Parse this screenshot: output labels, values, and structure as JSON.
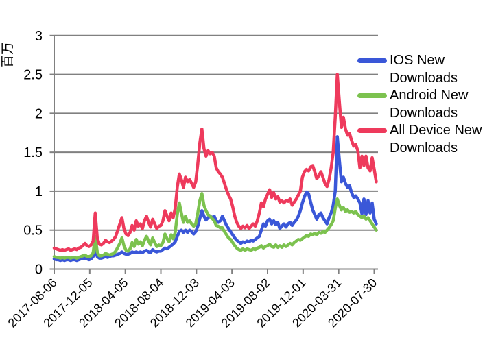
{
  "chart_data": {
    "type": "line",
    "title": "",
    "ylabel": "百万",
    "xlabel": "",
    "ylim": [
      0,
      3
    ],
    "grid": true,
    "legend_position": "right",
    "axis_color": "#808080",
    "text_color": "#000000",
    "yticks": [
      0,
      0.5,
      1,
      1.5,
      2,
      2.5,
      3
    ],
    "ytick_labels": [
      "0",
      "0.5",
      "1",
      "1.5",
      "2",
      "2.5",
      "3"
    ],
    "xtick_labels": [
      "2017-08-06",
      "2017-12-05",
      "2018-04-05",
      "2018-08-04",
      "2018-12-03",
      "2019-04-03",
      "2019-08-02",
      "2019-12-01",
      "2020-03-31",
      "2020-07-30"
    ],
    "x_unit": "weekly samples between tick dates",
    "series": [
      {
        "key": "ios-new-downloads",
        "name": "IOS New Downloads",
        "color": "#3A57D8",
        "values": [
          0.13,
          0.12,
          0.12,
          0.11,
          0.12,
          0.11,
          0.12,
          0.12,
          0.11,
          0.12,
          0.12,
          0.11,
          0.12,
          0.13,
          0.13,
          0.14,
          0.13,
          0.12,
          0.13,
          0.16,
          0.24,
          0.16,
          0.14,
          0.14,
          0.15,
          0.16,
          0.15,
          0.16,
          0.17,
          0.17,
          0.18,
          0.19,
          0.2,
          0.22,
          0.2,
          0.19,
          0.19,
          0.2,
          0.22,
          0.21,
          0.22,
          0.21,
          0.22,
          0.21,
          0.23,
          0.24,
          0.22,
          0.21,
          0.25,
          0.23,
          0.22,
          0.23,
          0.23,
          0.25,
          0.27,
          0.26,
          0.28,
          0.3,
          0.32,
          0.35,
          0.42,
          0.48,
          0.5,
          0.47,
          0.5,
          0.47,
          0.5,
          0.48,
          0.45,
          0.48,
          0.55,
          0.65,
          0.75,
          0.68,
          0.63,
          0.66,
          0.68,
          0.66,
          0.68,
          0.62,
          0.6,
          0.62,
          0.68,
          0.62,
          0.56,
          0.52,
          0.48,
          0.44,
          0.4,
          0.37,
          0.35,
          0.33,
          0.35,
          0.34,
          0.36,
          0.35,
          0.37,
          0.36,
          0.38,
          0.4,
          0.42,
          0.5,
          0.58,
          0.55,
          0.62,
          0.64,
          0.58,
          0.62,
          0.57,
          0.6,
          0.52,
          0.55,
          0.58,
          0.54,
          0.58,
          0.6,
          0.56,
          0.6,
          0.63,
          0.68,
          0.75,
          0.85,
          0.93,
          0.99,
          0.97,
          0.86,
          0.76,
          0.7,
          0.64,
          0.7,
          0.72,
          0.66,
          0.62,
          0.58,
          0.66,
          0.72,
          0.82,
          1.0,
          1.7,
          1.4,
          1.12,
          1.18,
          1.1,
          1.05,
          1.07,
          0.98,
          0.92,
          0.94,
          0.9,
          0.85,
          0.71,
          0.9,
          0.7,
          0.88,
          0.72,
          0.85,
          0.64,
          0.58
        ]
      },
      {
        "key": "android-new-downloads",
        "name": "Android New Downloads",
        "color": "#7CC24F",
        "values": [
          0.16,
          0.15,
          0.15,
          0.14,
          0.15,
          0.14,
          0.15,
          0.15,
          0.14,
          0.15,
          0.15,
          0.14,
          0.15,
          0.16,
          0.17,
          0.18,
          0.16,
          0.16,
          0.17,
          0.21,
          0.42,
          0.22,
          0.17,
          0.17,
          0.18,
          0.2,
          0.19,
          0.18,
          0.19,
          0.2,
          0.23,
          0.28,
          0.33,
          0.4,
          0.3,
          0.24,
          0.23,
          0.26,
          0.34,
          0.29,
          0.38,
          0.32,
          0.35,
          0.3,
          0.37,
          0.42,
          0.36,
          0.31,
          0.4,
          0.34,
          0.29,
          0.31,
          0.3,
          0.34,
          0.45,
          0.39,
          0.35,
          0.44,
          0.39,
          0.47,
          0.7,
          0.85,
          0.72,
          0.6,
          0.68,
          0.6,
          0.62,
          0.58,
          0.55,
          0.58,
          0.72,
          0.88,
          0.97,
          0.82,
          0.75,
          0.7,
          0.68,
          0.65,
          0.62,
          0.56,
          0.55,
          0.53,
          0.53,
          0.48,
          0.44,
          0.4,
          0.38,
          0.34,
          0.3,
          0.27,
          0.25,
          0.24,
          0.26,
          0.24,
          0.26,
          0.25,
          0.24,
          0.26,
          0.25,
          0.27,
          0.28,
          0.3,
          0.27,
          0.29,
          0.3,
          0.32,
          0.29,
          0.28,
          0.31,
          0.28,
          0.3,
          0.28,
          0.31,
          0.29,
          0.31,
          0.33,
          0.31,
          0.34,
          0.36,
          0.38,
          0.37,
          0.39,
          0.41,
          0.43,
          0.42,
          0.45,
          0.44,
          0.46,
          0.44,
          0.47,
          0.46,
          0.48,
          0.47,
          0.5,
          0.53,
          0.57,
          0.62,
          0.78,
          0.9,
          0.82,
          0.76,
          0.79,
          0.74,
          0.76,
          0.73,
          0.74,
          0.72,
          0.74,
          0.7,
          0.68,
          0.66,
          0.68,
          0.64,
          0.66,
          0.62,
          0.58,
          0.54,
          0.5
        ]
      },
      {
        "key": "all-device-new-downloads",
        "name": "All Device New Downloads",
        "color": "#EE3A5C",
        "values": [
          0.27,
          0.26,
          0.25,
          0.24,
          0.25,
          0.24,
          0.25,
          0.26,
          0.24,
          0.25,
          0.26,
          0.25,
          0.27,
          0.28,
          0.3,
          0.33,
          0.3,
          0.29,
          0.31,
          0.36,
          0.72,
          0.4,
          0.32,
          0.31,
          0.33,
          0.37,
          0.35,
          0.34,
          0.36,
          0.38,
          0.42,
          0.5,
          0.58,
          0.66,
          0.52,
          0.45,
          0.43,
          0.47,
          0.56,
          0.5,
          0.62,
          0.55,
          0.58,
          0.52,
          0.62,
          0.68,
          0.6,
          0.54,
          0.64,
          0.58,
          0.52,
          0.55,
          0.56,
          0.62,
          0.75,
          0.68,
          0.62,
          0.72,
          0.66,
          0.78,
          1.05,
          1.22,
          1.15,
          1.05,
          1.18,
          1.12,
          1.15,
          1.1,
          1.05,
          1.12,
          1.35,
          1.62,
          1.8,
          1.55,
          1.45,
          1.52,
          1.48,
          1.5,
          1.45,
          1.3,
          1.25,
          1.22,
          1.18,
          1.1,
          1.02,
          0.95,
          0.9,
          0.8,
          0.68,
          0.6,
          0.55,
          0.52,
          0.55,
          0.53,
          0.56,
          0.52,
          0.55,
          0.58,
          0.55,
          0.62,
          0.72,
          0.85,
          0.8,
          0.9,
          0.96,
          1.02,
          0.92,
          0.98,
          0.9,
          0.93,
          0.86,
          0.88,
          0.85,
          0.88,
          0.87,
          0.9,
          0.82,
          0.86,
          0.9,
          0.95,
          1.0,
          1.18,
          1.25,
          1.28,
          1.26,
          1.31,
          1.33,
          1.25,
          1.16,
          1.2,
          1.25,
          1.18,
          1.1,
          1.06,
          1.15,
          1.3,
          1.5,
          1.95,
          2.5,
          2.15,
          1.82,
          1.95,
          1.8,
          1.72,
          1.74,
          1.65,
          1.58,
          1.6,
          1.52,
          1.3,
          1.45,
          1.33,
          1.45,
          1.3,
          1.26,
          1.43,
          1.28,
          1.12
        ]
      }
    ]
  }
}
